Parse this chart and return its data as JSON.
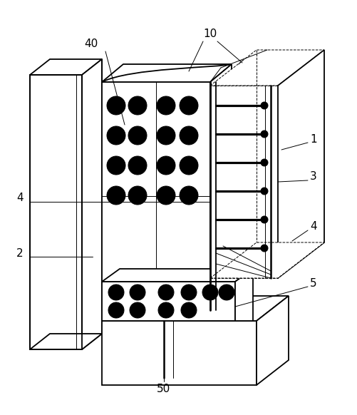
{
  "bg_color": "#ffffff",
  "line_color": "#000000",
  "lw_main": 1.3,
  "lw_thin": 0.7,
  "lw_thick": 2.0,
  "figsize": [
    5.02,
    5.82
  ],
  "dpi": 100,
  "fs": 11
}
